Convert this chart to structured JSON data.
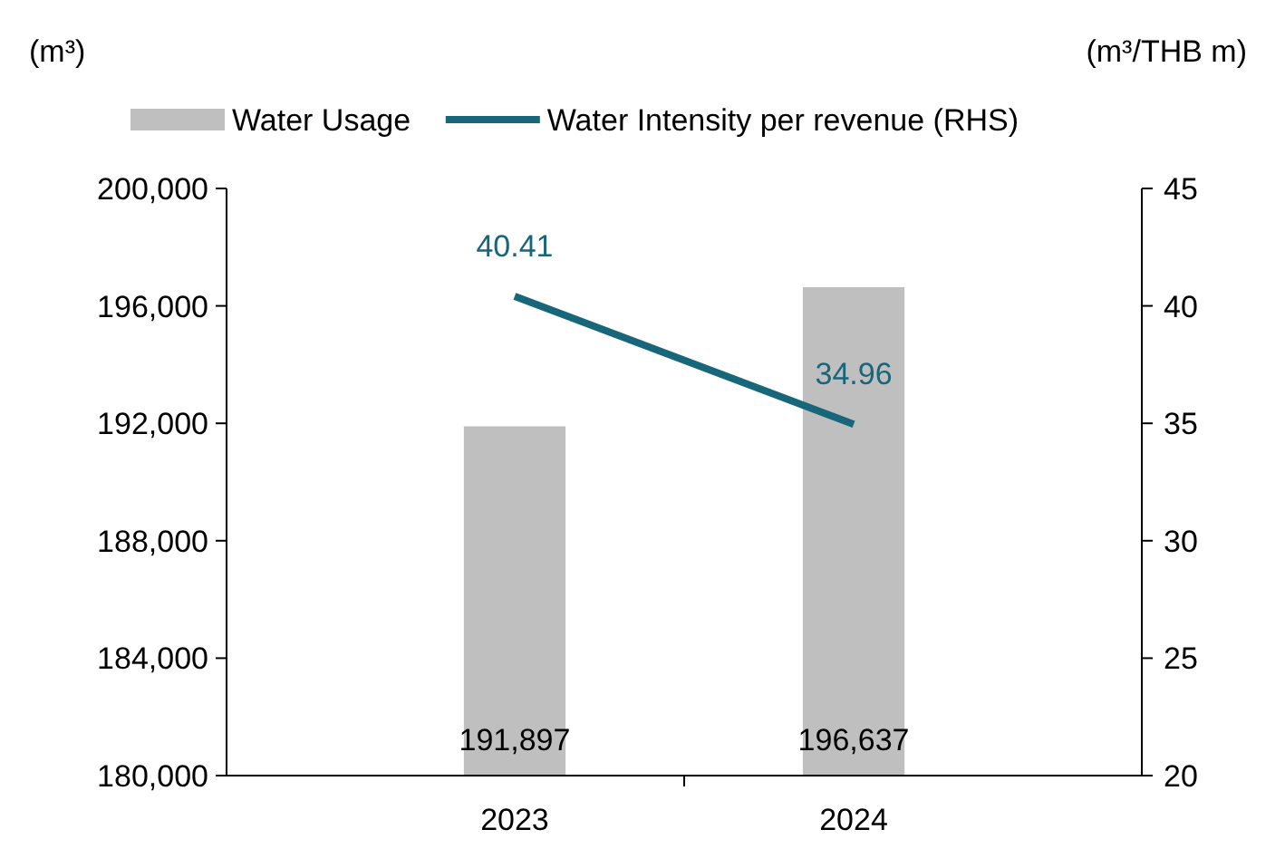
{
  "chart_data": {
    "type": "bar",
    "ylabel": "(m³)",
    "y2label": "(m³/THB m)",
    "categories": [
      "2023",
      "2024"
    ],
    "series": [
      {
        "name": "Water Usage",
        "color": "#bfbfbf",
        "values": [
          191897,
          196637
        ],
        "value_labels": [
          "191,897",
          "196,637"
        ]
      },
      {
        "name": "Water Intensity per revenue (RHS)",
        "type": "line",
        "axis": "y2",
        "color": "#17667a",
        "values": [
          40.41,
          34.96
        ],
        "value_labels": [
          "40.41",
          "34.96"
        ]
      }
    ],
    "ylim": [
      180000,
      200000
    ],
    "yticks": [
      {
        "value": 180000,
        "label": "180,000"
      },
      {
        "value": 184000,
        "label": "184,000"
      },
      {
        "value": 188000,
        "label": "188,000"
      },
      {
        "value": 192000,
        "label": "192,000"
      },
      {
        "value": 196000,
        "label": "196,000"
      },
      {
        "value": 200000,
        "label": "200,000"
      }
    ],
    "y2lim": [
      20,
      45
    ],
    "y2ticks": [
      20,
      25,
      30,
      35,
      40,
      45
    ],
    "legend": "top",
    "marker": "none",
    "line_style": "solid"
  }
}
